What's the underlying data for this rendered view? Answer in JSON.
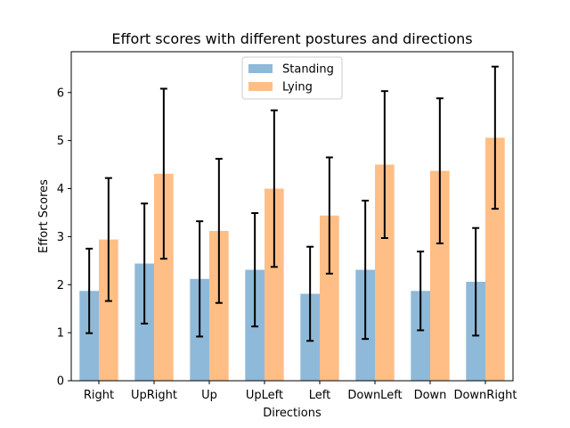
{
  "chart_data": {
    "type": "bar",
    "title": "Effort scores with different postures and directions",
    "xlabel": "Directions",
    "ylabel": "Effort Scores",
    "categories": [
      "Right",
      "UpRight",
      "Up",
      "UpLeft",
      "Left",
      "DownLeft",
      "Down",
      "DownRight"
    ],
    "ylim": [
      0,
      6.85
    ],
    "yticks": [
      0,
      1,
      2,
      3,
      4,
      5,
      6
    ],
    "grid": false,
    "legend_position": "top-center",
    "series": [
      {
        "name": "Standing",
        "color": "#8fb9d9",
        "values": [
          1.87,
          2.44,
          2.12,
          2.31,
          1.81,
          2.31,
          1.87,
          2.06
        ],
        "errors": [
          0.88,
          1.25,
          1.2,
          1.18,
          0.98,
          1.44,
          0.82,
          1.12
        ]
      },
      {
        "name": "Lying",
        "color": "#ffbe86",
        "values": [
          2.94,
          4.31,
          3.12,
          4.0,
          3.44,
          4.5,
          4.37,
          5.06
        ],
        "errors": [
          1.28,
          1.77,
          1.5,
          1.63,
          1.21,
          1.53,
          1.51,
          1.48
        ]
      }
    ]
  }
}
